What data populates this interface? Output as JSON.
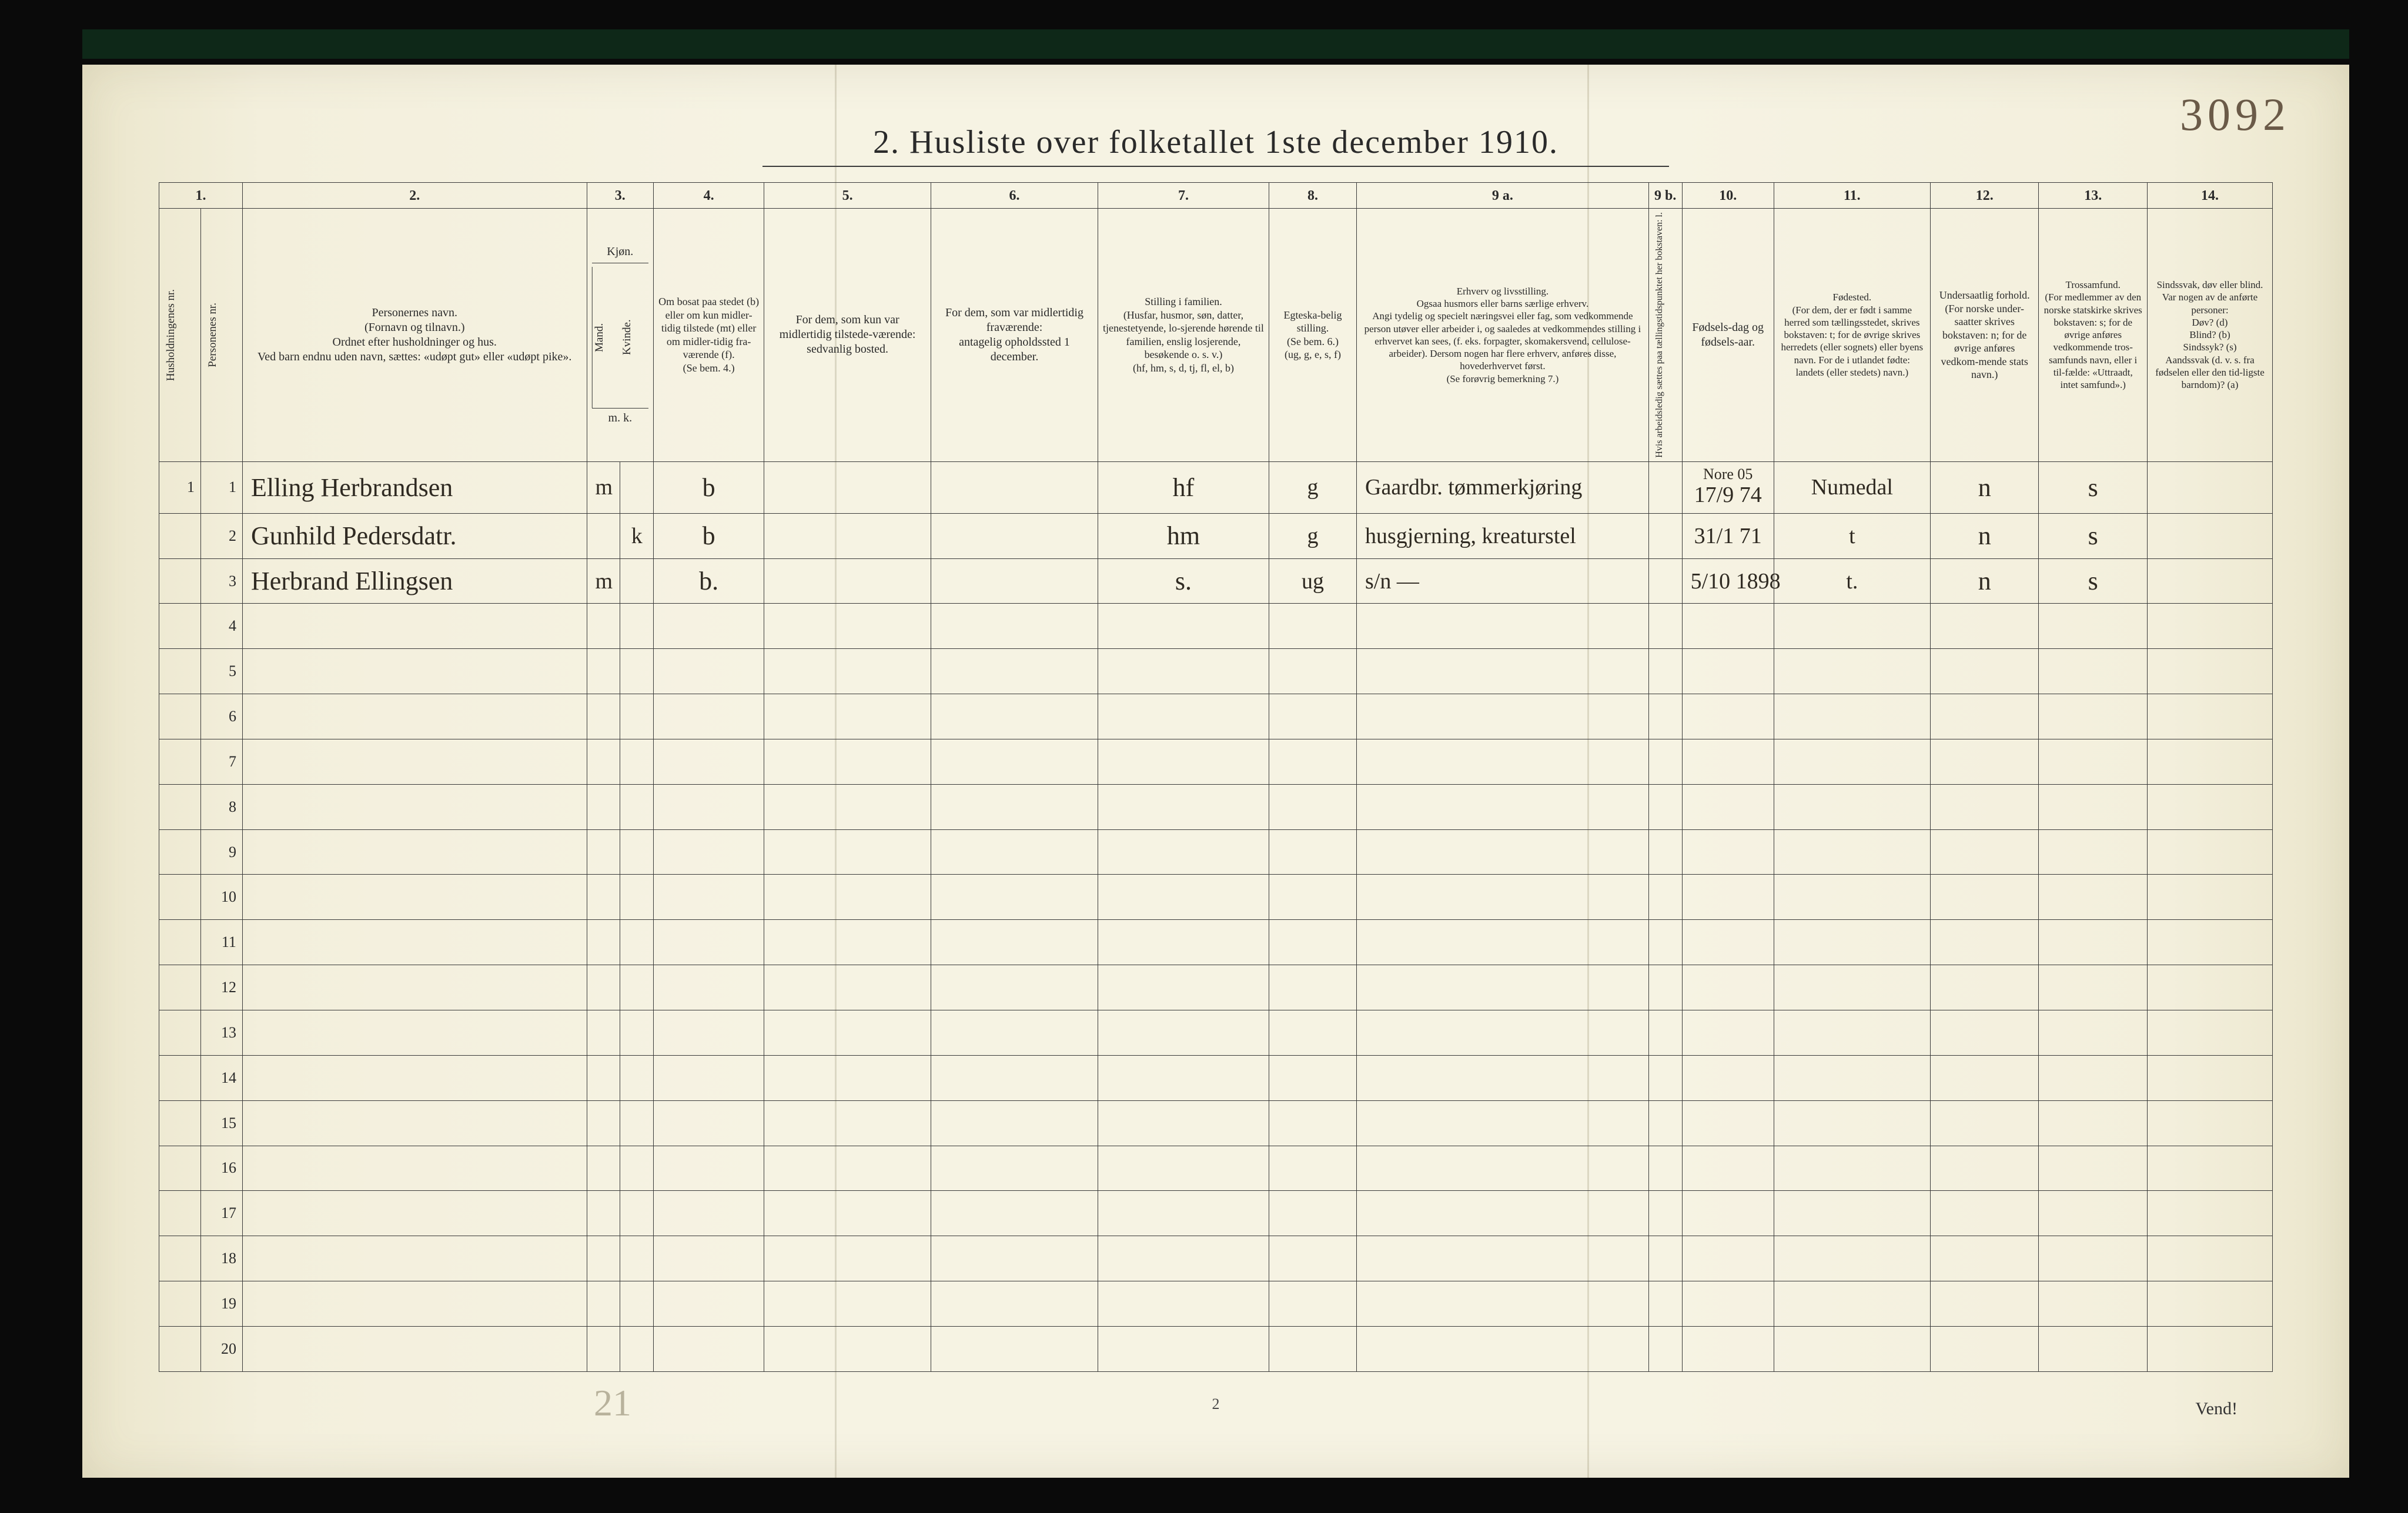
{
  "corner_number": "3092",
  "title": "2.   Husliste over folketallet 1ste december 1910.",
  "footer_page": "2",
  "footer_vend": "Vend!",
  "pencil_note": "21",
  "colnums": [
    "1.",
    "2.",
    "3.",
    "4.",
    "5.",
    "6.",
    "7.",
    "8.",
    "9 a.",
    "9 b.",
    "10.",
    "11.",
    "12.",
    "13.",
    "14."
  ],
  "headers": {
    "c1a": "Husholdningenes nr.",
    "c1b": "Personenes nr.",
    "c2": "Personernes navn.\n(Fornavn og tilnavn.)\nOrdnet efter husholdninger og hus.\nVed barn endnu uden navn, sættes: «udøpt gut» eller «udøpt pike».",
    "c3": "Kjøn.",
    "c3a": "Mand.",
    "c3b": "Kvinde.",
    "c3foot": "m.  k.",
    "c4": "Om bosat paa stedet (b) eller om kun midler-tidig tilstede (mt) eller om midler-tidig fra-værende (f).\n(Se bem. 4.)",
    "c5": "For dem, som kun var midlertidig tilstede-værende:\nsedvanlig bosted.",
    "c6": "For dem, som var midlertidig fraværende:\nantagelig opholdssted 1 december.",
    "c7": "Stilling i familien.\n(Husfar, husmor, søn, datter, tjenestetyende, lo-sjerende hørende til familien, enslig losjerende, besøkende o. s. v.)\n(hf, hm, s, d, tj, fl, el, b)",
    "c8": "Egteska-belig stilling.\n(Se bem. 6.)\n(ug, g, e, s, f)",
    "c9a": "Erhverv og livsstilling.\nOgsaa husmors eller barns særlige erhverv.\nAngi tydelig og specielt næringsvei eller fag, som vedkommende person utøver eller arbeider i, og saaledes at vedkommendes stilling i erhvervet kan sees, (f. eks. forpagter, skomakersvend, cellulose-arbeider). Dersom nogen har flere erhverv, anføres disse, hovederhvervet først.\n(Se forøvrig bemerkning 7.)",
    "c9b": "Hvis arbeidsledig sættes paa tællingstidspunktet her bokstaven: l.",
    "c10": "Fødsels-dag og fødsels-aar.",
    "c11": "Fødested.\n(For dem, der er født i samme herred som tællingsstedet, skrives bokstaven: t; for de øvrige skrives herredets (eller sognets) eller byens navn. For de i utlandet fødte: landets (eller stedets) navn.)",
    "c12": "Undersaatlig forhold.\n(For norske under-saatter skrives bokstaven: n; for de øvrige anføres vedkom-mende stats navn.)",
    "c13": "Trossamfund.\n(For medlemmer av den norske statskirke skrives bokstaven: s; for de øvrige anføres vedkommende tros-samfunds navn, eller i til-fælde: «Uttraadt, intet samfund».)",
    "c14": "Sindssvak, døv eller blind.\nVar nogen av de anførte personer:\nDøv?        (d)\nBlind?       (b)\nSindssyk?  (s)\nAandssvak (d. v. s. fra fødselen eller den tid-ligste barndom)?  (a)"
  },
  "rows": [
    {
      "n": "1",
      "name": "Elling Herbrandsen",
      "m": "m",
      "k": "",
      "b": "b",
      "c5": "",
      "c6": "",
      "fam": "hf",
      "eg": "g",
      "erv": "Gaardbr. tømmerkjøring",
      "dob": "17/9 74",
      "dobnote": "Nore 05",
      "born": "Numedal",
      "und": "n",
      "tro": "s",
      "c14": ""
    },
    {
      "n": "2",
      "name": "Gunhild Pedersdatr.",
      "m": "",
      "k": "k",
      "b": "b",
      "c5": "",
      "c6": "",
      "fam": "hm",
      "eg": "g",
      "erv": "husgjerning, kreaturstel",
      "dob": "31/1 71",
      "dobnote": "",
      "born": "t",
      "und": "n",
      "tro": "s",
      "c14": ""
    },
    {
      "n": "3",
      "name": "Herbrand Ellingsen",
      "m": "m",
      "k": "",
      "b": "b.",
      "c5": "",
      "c6": "",
      "fam": "s.",
      "eg": "ug",
      "erv": "s/n —",
      "dob": "5/10 1898",
      "dobnote": "",
      "born": "t.",
      "und": "n",
      "tro": "s",
      "c14": ""
    },
    {
      "n": "4"
    },
    {
      "n": "5"
    },
    {
      "n": "6"
    },
    {
      "n": "7"
    },
    {
      "n": "8"
    },
    {
      "n": "9"
    },
    {
      "n": "10"
    },
    {
      "n": "11"
    },
    {
      "n": "12"
    },
    {
      "n": "13"
    },
    {
      "n": "14"
    },
    {
      "n": "15"
    },
    {
      "n": "16"
    },
    {
      "n": "17"
    },
    {
      "n": "18"
    },
    {
      "n": "19"
    },
    {
      "n": "20"
    }
  ],
  "colwidths_pct": [
    2.0,
    2.0,
    16.5,
    1.6,
    1.6,
    5.3,
    8.0,
    8.0,
    8.2,
    4.2,
    14.0,
    1.6,
    4.4,
    7.5,
    5.2,
    5.2,
    6.0
  ],
  "colors": {
    "paper": "#f6f3e3",
    "ink": "#2a2a2a",
    "hand": "#2f2a22",
    "pencil": "#b8b29c",
    "border": "#3a3a3a"
  }
}
